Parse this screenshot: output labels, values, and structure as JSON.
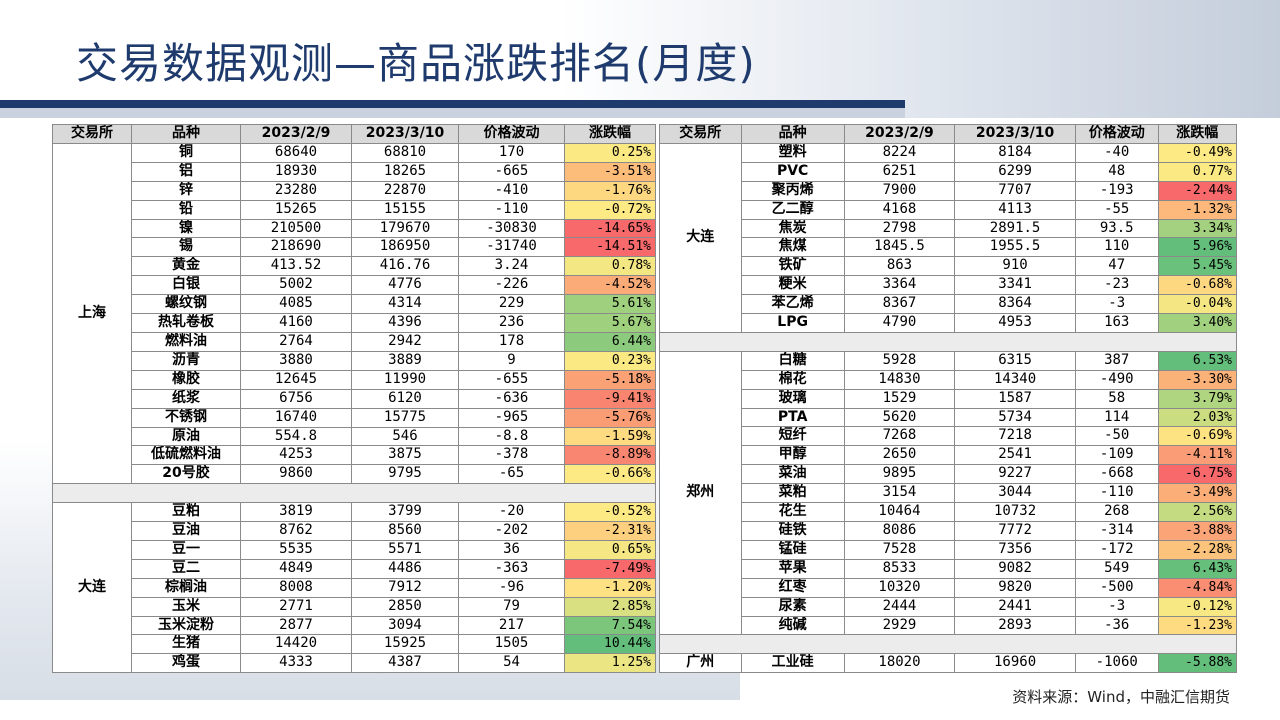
{
  "title": "交易数据观测—商品涨跌排名(月度)",
  "source": "资料来源：Wind，中融汇信期货",
  "headers": [
    "交易所",
    "品种",
    "2023/2/9",
    "2023/3/10",
    "价格波动",
    "涨跌幅"
  ],
  "left_groups": [
    {
      "exchange": "上海",
      "rows": [
        {
          "name": "铜",
          "p1": "68640",
          "p2": "68810",
          "chg": "170",
          "pct": "0.25%",
          "color": "#fbea84"
        },
        {
          "name": "铝",
          "p1": "18930",
          "p2": "18265",
          "chg": "-665",
          "pct": "-3.51%",
          "color": "#fcbc7a"
        },
        {
          "name": "锌",
          "p1": "23280",
          "p2": "22870",
          "chg": "-410",
          "pct": "-1.76%",
          "color": "#fed881"
        },
        {
          "name": "铅",
          "p1": "15265",
          "p2": "15155",
          "chg": "-110",
          "pct": "-0.72%",
          "color": "#feea84"
        },
        {
          "name": "镍",
          "p1": "210500",
          "p2": "179670",
          "chg": "-30830",
          "pct": "-14.65%",
          "color": "#f8696b"
        },
        {
          "name": "锡",
          "p1": "218690",
          "p2": "186950",
          "chg": "-31740",
          "pct": "-14.51%",
          "color": "#f8696b"
        },
        {
          "name": "黄金",
          "p1": "413.52",
          "p2": "416.76",
          "chg": "3.24",
          "pct": "0.78%",
          "color": "#f3e783"
        },
        {
          "name": "白银",
          "p1": "5002",
          "p2": "4776",
          "chg": "-226",
          "pct": "-4.52%",
          "color": "#fbab78"
        },
        {
          "name": "螺纹钢",
          "p1": "4085",
          "p2": "4314",
          "chg": "229",
          "pct": "5.61%",
          "color": "#9fd07e"
        },
        {
          "name": "热轧卷板",
          "p1": "4160",
          "p2": "4396",
          "chg": "236",
          "pct": "5.67%",
          "color": "#9fd07e"
        },
        {
          "name": "燃料油",
          "p1": "2764",
          "p2": "2942",
          "chg": "178",
          "pct": "6.44%",
          "color": "#8ccb7e"
        },
        {
          "name": "沥青",
          "p1": "3880",
          "p2": "3889",
          "chg": "9",
          "pct": "0.23%",
          "color": "#fbea84"
        },
        {
          "name": "橡胶",
          "p1": "12645",
          "p2": "11990",
          "chg": "-655",
          "pct": "-5.18%",
          "color": "#fba176"
        },
        {
          "name": "纸浆",
          "p1": "6756",
          "p2": "6120",
          "chg": "-636",
          "pct": "-9.41%",
          "color": "#f98570"
        },
        {
          "name": "不锈钢",
          "p1": "16740",
          "p2": "15775",
          "chg": "-965",
          "pct": "-5.76%",
          "color": "#fa9d75"
        },
        {
          "name": "原油",
          "p1": "554.8",
          "p2": "546",
          "chg": "-8.8",
          "pct": "-1.59%",
          "color": "#fedb81"
        },
        {
          "name": "低硫燃料油",
          "p1": "4253",
          "p2": "3875",
          "chg": "-378",
          "pct": "-8.89%",
          "color": "#f98670"
        },
        {
          "name": "20号胶",
          "p1": "9860",
          "p2": "9795",
          "chg": "-65",
          "pct": "-0.66%",
          "color": "#feea84"
        }
      ]
    },
    {
      "exchange": "大连",
      "rows": [
        {
          "name": "豆粕",
          "p1": "3819",
          "p2": "3799",
          "chg": "-20",
          "pct": "-0.52%",
          "color": "#feea84"
        },
        {
          "name": "豆油",
          "p1": "8762",
          "p2": "8560",
          "chg": "-202",
          "pct": "-2.31%",
          "color": "#fdd07f"
        },
        {
          "name": "豆一",
          "p1": "5535",
          "p2": "5571",
          "chg": "36",
          "pct": "0.65%",
          "color": "#f5e884"
        },
        {
          "name": "豆二",
          "p1": "4849",
          "p2": "4486",
          "chg": "-363",
          "pct": "-7.49%",
          "color": "#f8696b"
        },
        {
          "name": "棕榈油",
          "p1": "8008",
          "p2": "7912",
          "chg": "-96",
          "pct": "-1.20%",
          "color": "#fee183"
        },
        {
          "name": "玉米",
          "p1": "2771",
          "p2": "2850",
          "chg": "79",
          "pct": "2.85%",
          "color": "#d9e081"
        },
        {
          "name": "玉米淀粉",
          "p1": "2877",
          "p2": "3094",
          "chg": "217",
          "pct": "7.54%",
          "color": "#7cc67c"
        },
        {
          "name": "生猪",
          "p1": "14420",
          "p2": "15925",
          "chg": "1505",
          "pct": "10.44%",
          "color": "#63be7b"
        },
        {
          "name": "鸡蛋",
          "p1": "4333",
          "p2": "4387",
          "chg": "54",
          "pct": "1.25%",
          "color": "#ebe583"
        }
      ]
    }
  ],
  "right_groups": [
    {
      "exchange": "大连",
      "rows": [
        {
          "name": "塑料",
          "p1": "8224",
          "p2": "8184",
          "chg": "-40",
          "pct": "-0.49%",
          "color": "#feea84"
        },
        {
          "name": "PVC",
          "p1": "6251",
          "p2": "6299",
          "chg": "48",
          "pct": "0.77%",
          "color": "#fbea84"
        },
        {
          "name": "聚丙烯",
          "p1": "7900",
          "p2": "7707",
          "chg": "-193",
          "pct": "-2.44%",
          "color": "#f8696b"
        },
        {
          "name": "乙二醇",
          "p1": "4168",
          "p2": "4113",
          "chg": "-55",
          "pct": "-1.32%",
          "color": "#fdb97b"
        },
        {
          "name": "焦炭",
          "p1": "2798",
          "p2": "2891.5",
          "chg": "93.5",
          "pct": "3.34%",
          "color": "#a3d17f"
        },
        {
          "name": "焦煤",
          "p1": "1845.5",
          "p2": "1955.5",
          "chg": "110",
          "pct": "5.96%",
          "color": "#63be7b"
        },
        {
          "name": "铁矿",
          "p1": "863",
          "p2": "910",
          "chg": "47",
          "pct": "5.45%",
          "color": "#6ac17c"
        },
        {
          "name": "粳米",
          "p1": "3364",
          "p2": "3341",
          "chg": "-23",
          "pct": "-0.68%",
          "color": "#fed781"
        },
        {
          "name": "苯乙烯",
          "p1": "8367",
          "p2": "8364",
          "chg": "-3",
          "pct": "-0.04%",
          "color": "#f4e783"
        },
        {
          "name": "LPG",
          "p1": "4790",
          "p2": "4953",
          "chg": "163",
          "pct": "3.40%",
          "color": "#a1d07f"
        }
      ]
    },
    {
      "exchange": "郑州",
      "rows": [
        {
          "name": "白糖",
          "p1": "5928",
          "p2": "6315",
          "chg": "387",
          "pct": "6.53%",
          "color": "#63be7b"
        },
        {
          "name": "棉花",
          "p1": "14830",
          "p2": "14340",
          "chg": "-490",
          "pct": "-3.30%",
          "color": "#fbb279"
        },
        {
          "name": "玻璃",
          "p1": "1529",
          "p2": "1587",
          "chg": "58",
          "pct": "3.79%",
          "color": "#b0d580"
        },
        {
          "name": "PTA",
          "p1": "5620",
          "p2": "5734",
          "chg": "114",
          "pct": "2.03%",
          "color": "#cbdd81"
        },
        {
          "name": "短纤",
          "p1": "7268",
          "p2": "7218",
          "chg": "-50",
          "pct": "-0.69%",
          "color": "#fee383"
        },
        {
          "name": "甲醇",
          "p1": "2650",
          "p2": "2541",
          "chg": "-109",
          "pct": "-4.11%",
          "color": "#fa9c75"
        },
        {
          "name": "菜油",
          "p1": "9895",
          "p2": "9227",
          "chg": "-668",
          "pct": "-6.75%",
          "color": "#f8696b"
        },
        {
          "name": "菜粕",
          "p1": "3154",
          "p2": "3044",
          "chg": "-110",
          "pct": "-3.49%",
          "color": "#fbae78"
        },
        {
          "name": "花生",
          "p1": "10464",
          "p2": "10732",
          "chg": "268",
          "pct": "2.56%",
          "color": "#c4db81"
        },
        {
          "name": "硅铁",
          "p1": "8086",
          "p2": "7772",
          "chg": "-314",
          "pct": "-3.88%",
          "color": "#fba477"
        },
        {
          "name": "锰硅",
          "p1": "7528",
          "p2": "7356",
          "chg": "-172",
          "pct": "-2.28%",
          "color": "#fcc37c"
        },
        {
          "name": "苹果",
          "p1": "8533",
          "p2": "9082",
          "chg": "549",
          "pct": "6.43%",
          "color": "#66bf7b"
        },
        {
          "name": "红枣",
          "p1": "10320",
          "p2": "9820",
          "chg": "-500",
          "pct": "-4.84%",
          "color": "#f98e72"
        },
        {
          "name": "尿素",
          "p1": "2444",
          "p2": "2441",
          "chg": "-3",
          "pct": "-0.12%",
          "color": "#f7e883"
        },
        {
          "name": "纯碱",
          "p1": "2929",
          "p2": "2893",
          "chg": "-36",
          "pct": "-1.23%",
          "color": "#fedb81"
        }
      ]
    },
    {
      "exchange": "广州",
      "rows": [
        {
          "name": "工业硅",
          "p1": "18020",
          "p2": "16960",
          "chg": "-1060",
          "pct": "-5.88%",
          "color": "#63be7b"
        }
      ]
    }
  ]
}
